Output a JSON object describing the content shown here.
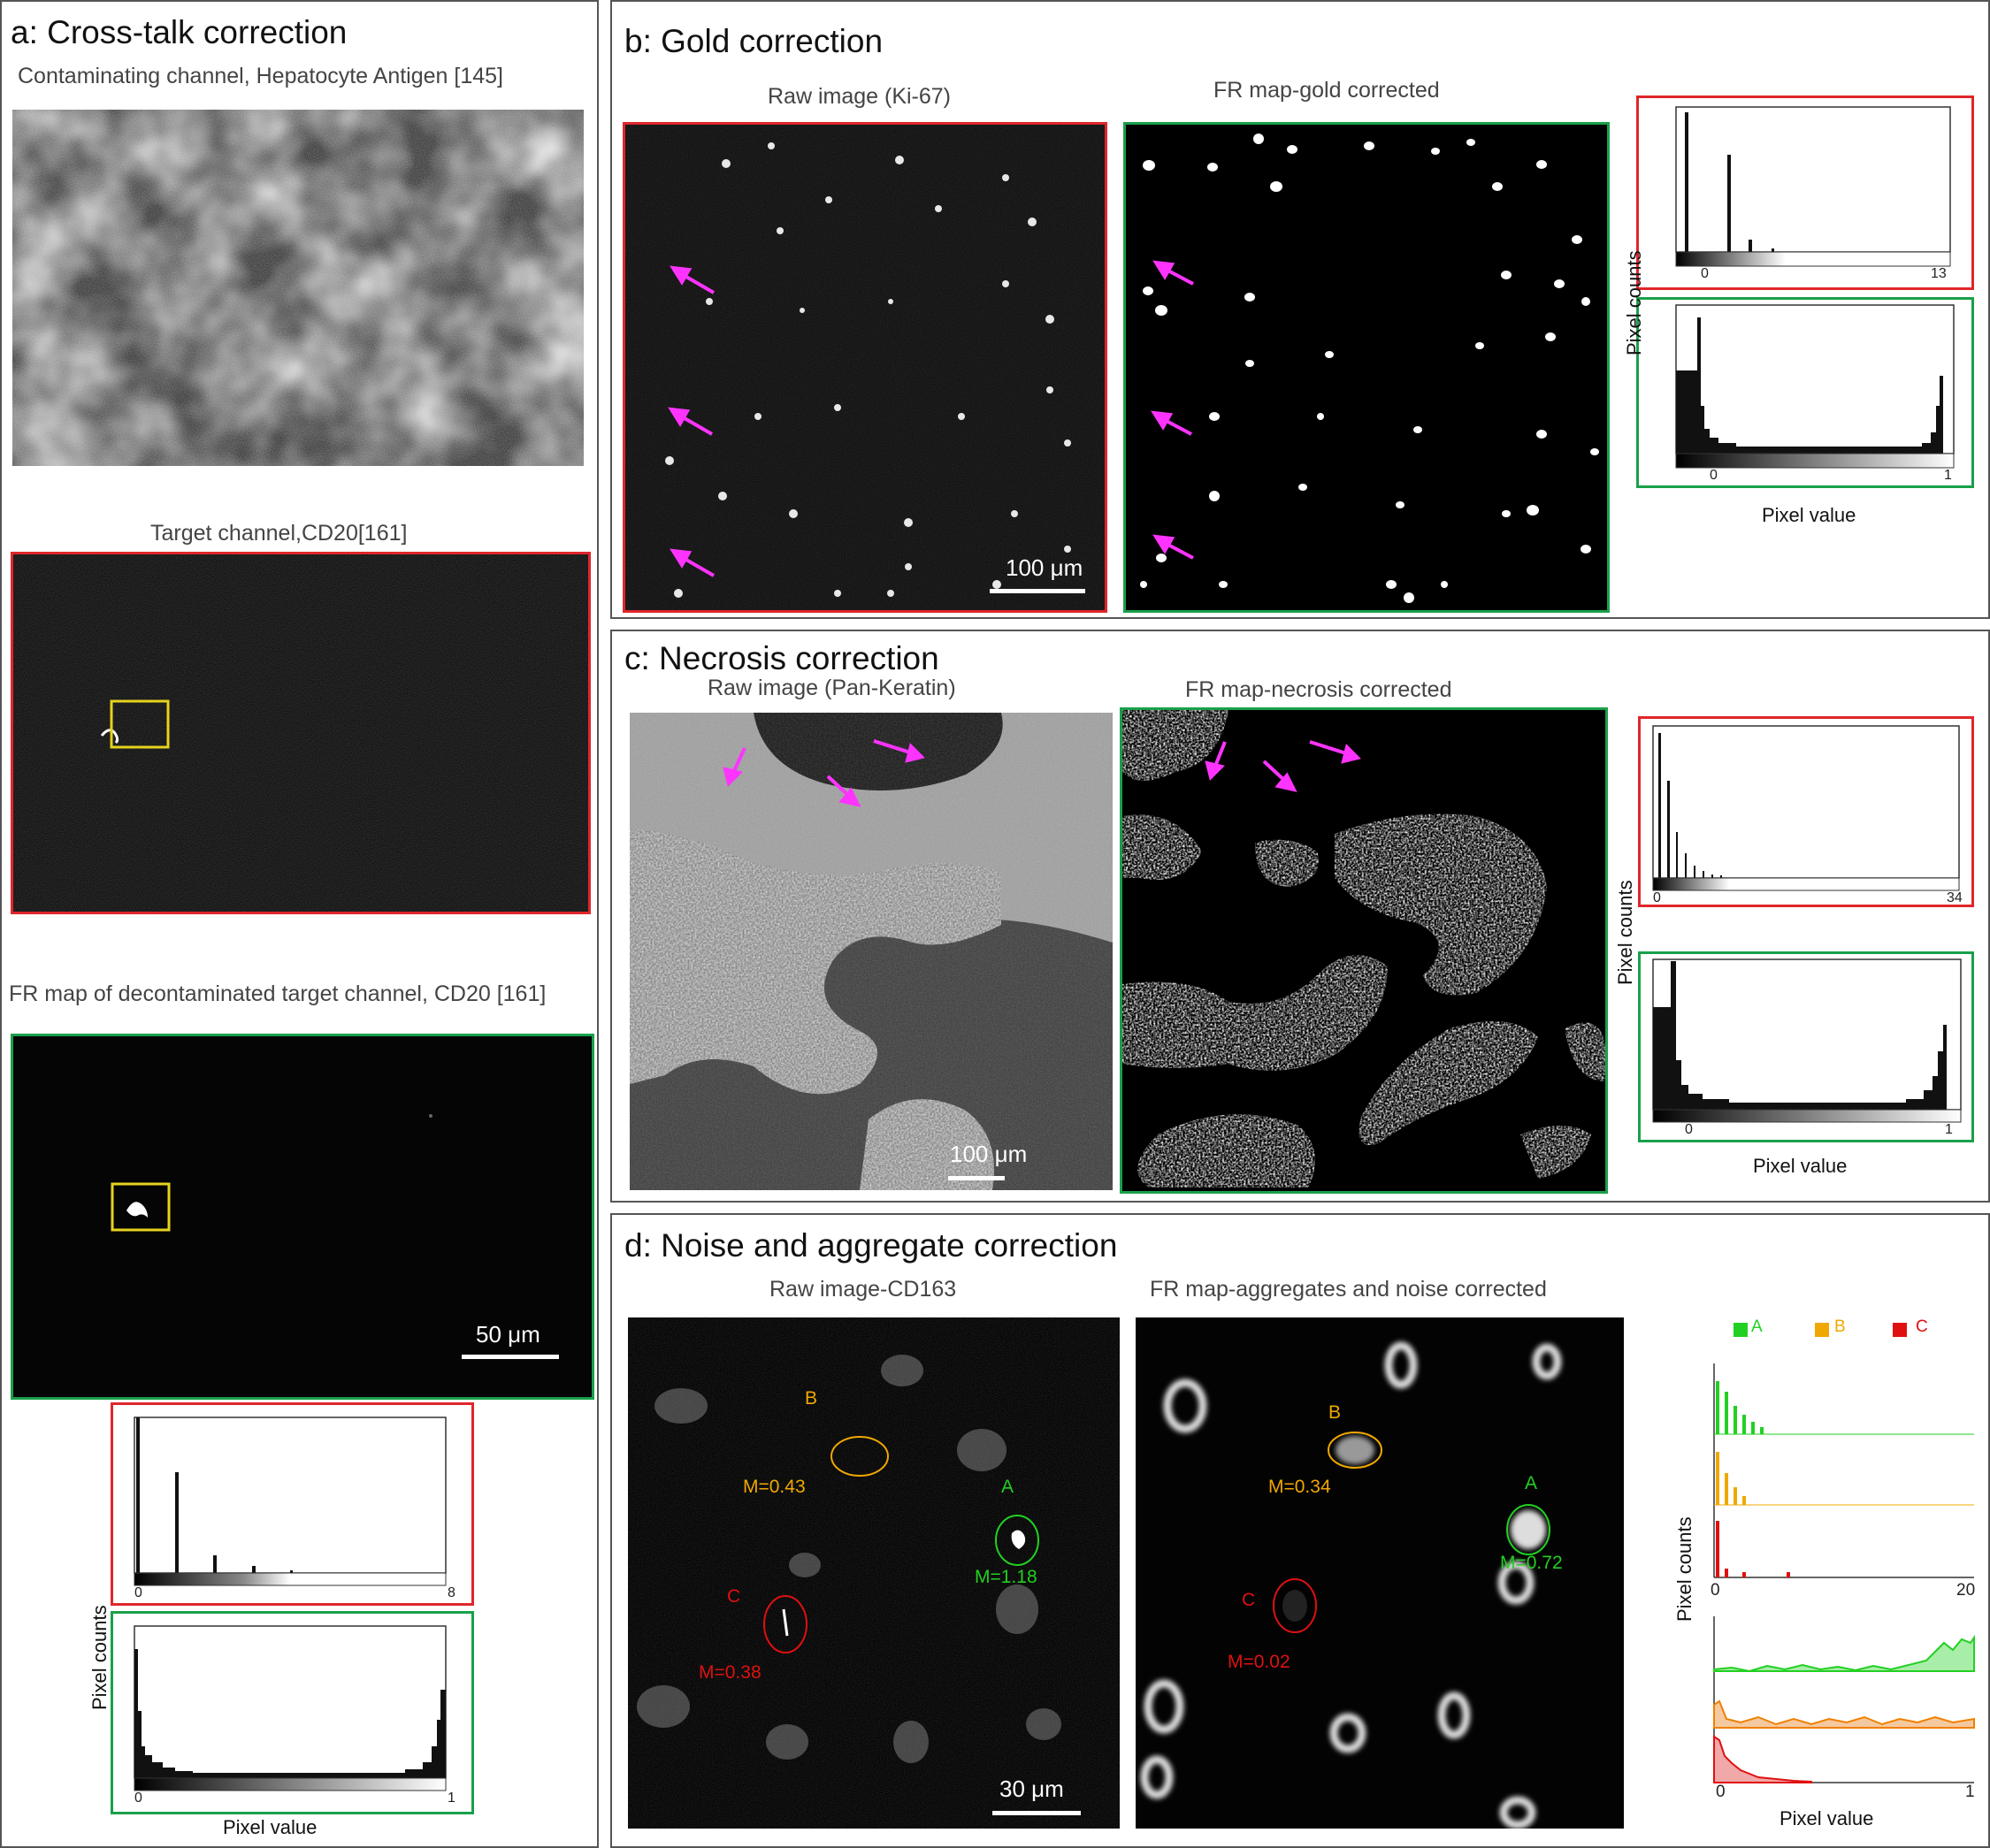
{
  "panel_a": {
    "title": "a: Cross-talk correction",
    "contam_caption": "Contaminating channel, Hepatocyte  Antigen [145]",
    "target_caption": "Target channel,CD20[161]",
    "fr_caption": "FR map of decontaminated target channel, CD20 [161]",
    "scalebar": "50 μm",
    "hist_raw_ticks": [
      "0",
      "8"
    ],
    "hist_fr_ticks": [
      "0",
      "1"
    ],
    "ylabel": "Pixel counts",
    "xlabel": "Pixel value"
  },
  "panel_b": {
    "title": "b: Gold correction",
    "raw_caption": "Raw image (Ki-67)",
    "fr_caption": "FR map-gold corrected",
    "scalebar": "100 μm",
    "hist_raw_ticks": [
      "0",
      "13"
    ],
    "hist_fr_ticks": [
      "0",
      "1"
    ],
    "ylabel": "Pixel counts",
    "xlabel": "Pixel value"
  },
  "panel_c": {
    "title": "c:  Necrosis correction",
    "raw_caption": "Raw image (Pan-Keratin)",
    "fr_caption": "FR map-necrosis corrected",
    "scalebar": "100 μm",
    "hist_raw_ticks": [
      "0",
      "34"
    ],
    "hist_fr_ticks": [
      "0",
      "1"
    ],
    "ylabel": "Pixel counts",
    "xlabel": "Pixel value"
  },
  "panel_d": {
    "title": "d: Noise and aggregate correction",
    "raw_caption": "Raw image-CD163",
    "fr_caption": "FR map-aggregates  and noise corrected",
    "scalebar": "30 μm",
    "raw_labels": {
      "A": "A",
      "B": "B",
      "C": "C",
      "mA": "M=1.18",
      "mB": "M=0.43",
      "mC": "M=0.38"
    },
    "fr_labels": {
      "A": "A",
      "B": "B",
      "C": "C",
      "mA": "M=0.72",
      "mB": "M=0.34",
      "mC": "M=0.02"
    },
    "legend": [
      "A",
      "B",
      "C"
    ],
    "hist_raw_ticks": [
      "0",
      "20"
    ],
    "hist_fr_ticks": [
      "0",
      "1"
    ],
    "ylabel": "Pixel counts",
    "xlabel": "Pixel value"
  },
  "colors": {
    "red_frame": "#e0262b",
    "green_frame": "#19a04a",
    "yellow_box": "#e6d21e",
    "arrow": "#ff33ff",
    "label_A": "#22d022",
    "label_B": "#f0a800",
    "label_C": "#e01010"
  }
}
